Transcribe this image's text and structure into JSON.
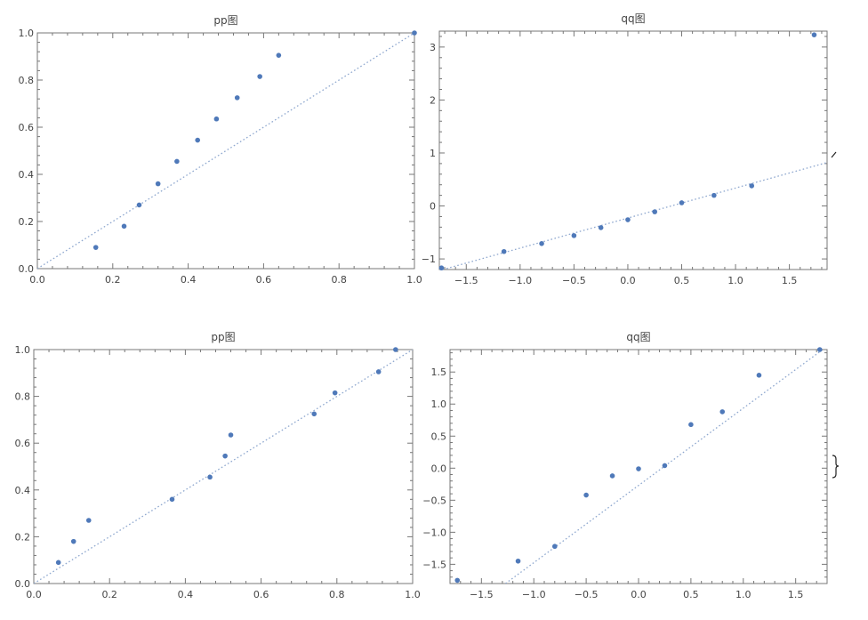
{
  "chart_data": [
    {
      "type": "scatter",
      "title": "pp图",
      "xlim": [
        0,
        1
      ],
      "ylim": [
        0,
        1
      ],
      "xticks": [
        "0.0",
        "0.2",
        "0.4",
        "0.6",
        "0.8",
        "1.0"
      ],
      "yticks": [
        "0.0",
        "0.2",
        "0.4",
        "0.6",
        "0.8",
        "1.0"
      ],
      "reference_line": {
        "from": [
          0,
          0
        ],
        "to": [
          1,
          1
        ]
      },
      "points": [
        [
          0.155,
          0.09
        ],
        [
          0.23,
          0.18
        ],
        [
          0.27,
          0.27
        ],
        [
          0.32,
          0.36
        ],
        [
          0.37,
          0.455
        ],
        [
          0.425,
          0.545
        ],
        [
          0.475,
          0.635
        ],
        [
          0.53,
          0.725
        ],
        [
          0.59,
          0.815
        ],
        [
          0.64,
          0.905
        ],
        [
          1.0,
          1.0
        ]
      ],
      "color": "#4f79b9"
    },
    {
      "type": "scatter",
      "title": "qq图",
      "xlim": [
        -1.75,
        1.85
      ],
      "ylim": [
        -1.2,
        3.3
      ],
      "xticks": [
        "-1.5",
        "-1.0",
        "-0.5",
        "0.0",
        "0.5",
        "1.0",
        "1.5"
      ],
      "yticks": [
        "-1",
        "0",
        "1",
        "2",
        "3"
      ],
      "reference_line": {
        "from": [
          -1.75,
          -1.22
        ],
        "to": [
          1.85,
          0.82
        ]
      },
      "points": [
        [
          -1.73,
          -1.17
        ],
        [
          -1.15,
          -0.86
        ],
        [
          -0.8,
          -0.71
        ],
        [
          -0.5,
          -0.56
        ],
        [
          -0.25,
          -0.41
        ],
        [
          0.0,
          -0.26
        ],
        [
          0.25,
          -0.11
        ],
        [
          0.5,
          0.06
        ],
        [
          0.8,
          0.2
        ],
        [
          1.15,
          0.38
        ],
        [
          1.73,
          3.23
        ]
      ],
      "color": "#4f79b9"
    },
    {
      "type": "scatter",
      "title": "pp图",
      "xlim": [
        0,
        1
      ],
      "ylim": [
        0,
        1
      ],
      "xticks": [
        "0.0",
        "0.2",
        "0.4",
        "0.6",
        "0.8",
        "1.0"
      ],
      "yticks": [
        "0.0",
        "0.2",
        "0.4",
        "0.6",
        "0.8",
        "1.0"
      ],
      "reference_line": {
        "from": [
          0,
          0
        ],
        "to": [
          1,
          1
        ]
      },
      "points": [
        [
          0.065,
          0.09
        ],
        [
          0.105,
          0.18
        ],
        [
          0.145,
          0.27
        ],
        [
          0.365,
          0.36
        ],
        [
          0.465,
          0.455
        ],
        [
          0.505,
          0.545
        ],
        [
          0.52,
          0.635
        ],
        [
          0.74,
          0.725
        ],
        [
          0.795,
          0.815
        ],
        [
          0.91,
          0.905
        ],
        [
          0.955,
          1.0
        ]
      ],
      "color": "#4f79b9"
    },
    {
      "type": "scatter",
      "title": "qq图",
      "xlim": [
        -1.8,
        1.8
      ],
      "ylim": [
        -1.8,
        1.85
      ],
      "xticks": [
        "-1.5",
        "-1.0",
        "-0.5",
        "0.0",
        "0.5",
        "1.0",
        "1.5"
      ],
      "yticks": [
        "-1.5",
        "-1.0",
        "-0.5",
        "0.0",
        "0.5",
        "1.0",
        "1.5"
      ],
      "reference_line": {
        "from": [
          -1.27,
          -1.8
        ],
        "to": [
          1.8,
          1.9
        ]
      },
      "points": [
        [
          -1.73,
          -1.75
        ],
        [
          -1.15,
          -1.45
        ],
        [
          -0.8,
          -1.22
        ],
        [
          -0.5,
          -0.42
        ],
        [
          -0.25,
          -0.12
        ],
        [
          0.0,
          -0.01
        ],
        [
          0.25,
          0.04
        ],
        [
          0.5,
          0.68
        ],
        [
          0.8,
          0.88
        ],
        [
          1.15,
          1.45
        ],
        [
          1.73,
          1.85
        ]
      ],
      "color": "#4f79b9"
    }
  ]
}
